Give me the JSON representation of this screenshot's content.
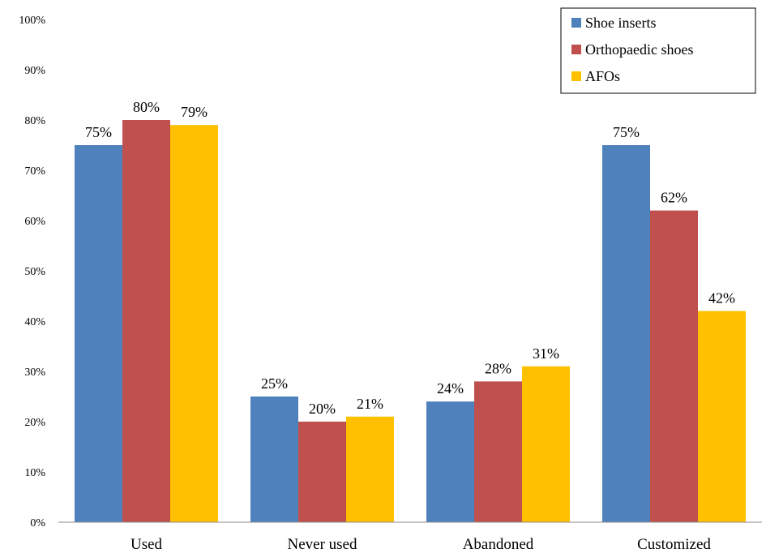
{
  "chart_data": {
    "type": "bar",
    "title": "",
    "xlabel": "",
    "ylabel": "",
    "ylim": [
      0,
      100
    ],
    "y_tick_step": 10,
    "y_tick_format": "percent",
    "grid": false,
    "legend_position": "top-right",
    "categories": [
      "Used",
      "Never used",
      "Abandoned",
      "Customized"
    ],
    "series": [
      {
        "name": "Shoe inserts",
        "color": "#4F81BD",
        "values": [
          75,
          25,
          24,
          75
        ]
      },
      {
        "name": "Orthopaedic shoes",
        "color": "#C0504D",
        "values": [
          80,
          20,
          28,
          62
        ]
      },
      {
        "name": "AFOs",
        "color": "#FFC000",
        "values": [
          79,
          21,
          31,
          42
        ]
      }
    ]
  }
}
